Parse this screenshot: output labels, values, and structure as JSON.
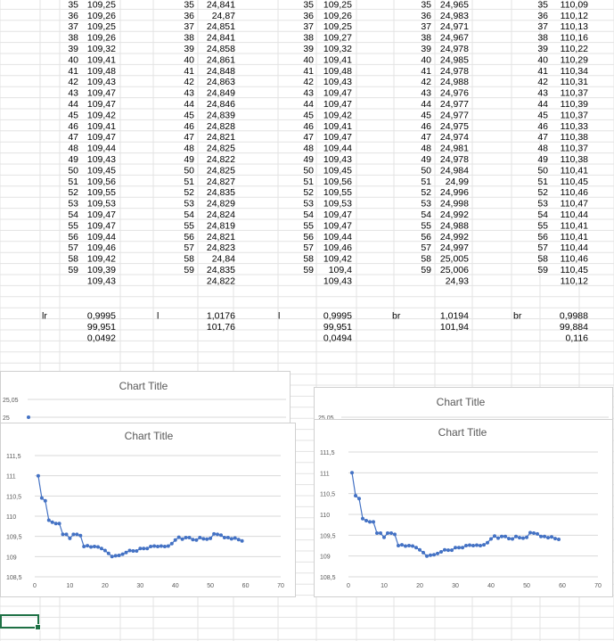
{
  "sheet": {
    "blocks": [
      {
        "name": "block-1",
        "x": [
          35,
          36,
          37,
          38,
          39,
          40,
          41,
          42,
          43,
          44,
          45,
          46,
          47,
          48,
          49,
          50,
          51,
          52,
          53,
          54,
          55,
          56,
          57,
          58,
          59
        ],
        "v": [
          "109,25",
          "109,26",
          "109,25",
          "109,26",
          "109,32",
          "109,41",
          "109,48",
          "109,43",
          "109,47",
          "109,47",
          "109,42",
          "109,41",
          "109,47",
          "109,44",
          "109,43",
          "109,45",
          "109,56",
          "109,55",
          "109,53",
          "109,47",
          "109,47",
          "109,44",
          "109,46",
          "109,42",
          "109,39"
        ],
        "avg": "109,43",
        "label": "lr",
        "stats": [
          "0,9995",
          "99,951",
          "0,0492"
        ]
      },
      {
        "name": "block-2",
        "x": [
          35,
          36,
          37,
          38,
          39,
          40,
          41,
          42,
          43,
          44,
          45,
          46,
          47,
          48,
          49,
          50,
          51,
          52,
          53,
          54,
          55,
          56,
          57,
          58,
          59
        ],
        "v": [
          "24,841",
          "24,87",
          "24,851",
          "24,841",
          "24,858",
          "24,861",
          "24,848",
          "24,863",
          "24,849",
          "24,846",
          "24,839",
          "24,828",
          "24,821",
          "24,825",
          "24,822",
          "24,825",
          "24,827",
          "24,835",
          "24,829",
          "24,824",
          "24,819",
          "24,821",
          "24,823",
          "24,84",
          "24,835"
        ],
        "avg": "24,822",
        "label": "l",
        "stats": [
          "1,0176",
          "101,76",
          ""
        ]
      },
      {
        "name": "block-3",
        "x": [
          35,
          36,
          37,
          38,
          39,
          40,
          41,
          42,
          43,
          44,
          45,
          46,
          47,
          48,
          49,
          50,
          51,
          52,
          53,
          54,
          55,
          56,
          57,
          58,
          59
        ],
        "v": [
          "109,25",
          "109,26",
          "109,25",
          "109,27",
          "109,32",
          "109,41",
          "109,48",
          "109,43",
          "109,47",
          "109,47",
          "109,42",
          "109,41",
          "109,47",
          "109,44",
          "109,43",
          "109,45",
          "109,56",
          "109,55",
          "109,53",
          "109,47",
          "109,47",
          "109,44",
          "109,46",
          "109,42",
          "109,4"
        ],
        "avg": "109,43",
        "label": "l",
        "stats": [
          "0,9995",
          "99,951",
          "0,0494"
        ]
      },
      {
        "name": "block-4",
        "x": [
          35,
          36,
          37,
          38,
          39,
          40,
          41,
          42,
          43,
          44,
          45,
          46,
          47,
          48,
          49,
          50,
          51,
          52,
          53,
          54,
          55,
          56,
          57,
          58,
          59
        ],
        "v": [
          "24,965",
          "24,983",
          "24,971",
          "24,967",
          "24,978",
          "24,985",
          "24,978",
          "24,988",
          "24,976",
          "24,977",
          "24,977",
          "24,975",
          "24,974",
          "24,981",
          "24,978",
          "24,984",
          "24,99",
          "24,996",
          "24,998",
          "24,992",
          "24,988",
          "24,992",
          "24,997",
          "25,005",
          "25,006"
        ],
        "avg": "24,93",
        "label": "br",
        "stats": [
          "1,0194",
          "101,94",
          ""
        ]
      },
      {
        "name": "block-5",
        "x": [
          35,
          36,
          37,
          38,
          39,
          40,
          41,
          42,
          43,
          44,
          45,
          46,
          47,
          48,
          49,
          50,
          51,
          52,
          53,
          54,
          55,
          56,
          57,
          58,
          59
        ],
        "v": [
          "110,09",
          "110,12",
          "110,13",
          "110,16",
          "110,22",
          "110,29",
          "110,34",
          "110,31",
          "110,37",
          "110,39",
          "110,37",
          "110,33",
          "110,38",
          "110,37",
          "110,38",
          "110,41",
          "110,45",
          "110,46",
          "110,47",
          "110,44",
          "110,41",
          "110,41",
          "110,44",
          "110,46",
          "110,45"
        ],
        "avg": "110,12",
        "label": "br",
        "stats": [
          "0,9988",
          "99,884",
          "0,116"
        ]
      }
    ]
  },
  "chart_data": [
    {
      "type": "line",
      "title": "Chart Title",
      "yticks": [
        "25,05",
        "25"
      ],
      "ylim": [
        24.95,
        25.05
      ]
    },
    {
      "type": "line",
      "title": "Chart Title",
      "yticks": [
        "25,05"
      ],
      "ylim": [
        24.95,
        25.05
      ]
    },
    {
      "type": "line",
      "title": "Chart Title",
      "xlim": [
        0,
        70
      ],
      "ylim": [
        108.5,
        111.5
      ],
      "xticks": [
        "0",
        "10",
        "20",
        "30",
        "40",
        "50",
        "60",
        "70"
      ],
      "yticks": [
        "108,5",
        "109",
        "109,5",
        "110",
        "110,5",
        "111",
        "111,5"
      ],
      "x": [
        1,
        2,
        3,
        4,
        5,
        6,
        7,
        8,
        9,
        10,
        11,
        12,
        13,
        14,
        15,
        16,
        17,
        18,
        19,
        20,
        21,
        22,
        23,
        24,
        25,
        26,
        27,
        28,
        29,
        30,
        31,
        32,
        33,
        34,
        35,
        36,
        37,
        38,
        39,
        40,
        41,
        42,
        43,
        44,
        45,
        46,
        47,
        48,
        49,
        50,
        51,
        52,
        53,
        54,
        55,
        56,
        57,
        58,
        59
      ],
      "values": [
        111.0,
        110.45,
        110.38,
        109.9,
        109.85,
        109.82,
        109.82,
        109.55,
        109.55,
        109.45,
        109.55,
        109.55,
        109.52,
        109.25,
        109.27,
        109.24,
        109.25,
        109.24,
        109.2,
        109.15,
        109.08,
        109.0,
        109.02,
        109.03,
        109.06,
        109.1,
        109.15,
        109.14,
        109.14,
        109.2,
        109.2,
        109.2,
        109.25,
        109.26,
        109.25,
        109.26,
        109.25,
        109.26,
        109.32,
        109.41,
        109.48,
        109.43,
        109.47,
        109.47,
        109.42,
        109.41,
        109.47,
        109.44,
        109.43,
        109.45,
        109.56,
        109.55,
        109.53,
        109.47,
        109.47,
        109.44,
        109.46,
        109.42,
        109.39
      ]
    },
    {
      "type": "line",
      "title": "Chart Title",
      "xlim": [
        0,
        70
      ],
      "ylim": [
        108.5,
        111.5
      ],
      "xticks": [
        "0",
        "10",
        "20",
        "30",
        "40",
        "50",
        "60",
        "70"
      ],
      "yticks": [
        "108,5",
        "109",
        "109,5",
        "110",
        "110,5",
        "111",
        "111,5"
      ],
      "x": [
        1,
        2,
        3,
        4,
        5,
        6,
        7,
        8,
        9,
        10,
        11,
        12,
        13,
        14,
        15,
        16,
        17,
        18,
        19,
        20,
        21,
        22,
        23,
        24,
        25,
        26,
        27,
        28,
        29,
        30,
        31,
        32,
        33,
        34,
        35,
        36,
        37,
        38,
        39,
        40,
        41,
        42,
        43,
        44,
        45,
        46,
        47,
        48,
        49,
        50,
        51,
        52,
        53,
        54,
        55,
        56,
        57,
        58,
        59
      ],
      "values": [
        111.0,
        110.45,
        110.38,
        109.9,
        109.85,
        109.82,
        109.82,
        109.55,
        109.55,
        109.45,
        109.55,
        109.55,
        109.52,
        109.25,
        109.27,
        109.24,
        109.25,
        109.24,
        109.2,
        109.15,
        109.08,
        109.0,
        109.02,
        109.03,
        109.06,
        109.1,
        109.15,
        109.14,
        109.14,
        109.2,
        109.2,
        109.2,
        109.25,
        109.26,
        109.25,
        109.26,
        109.25,
        109.27,
        109.32,
        109.41,
        109.48,
        109.43,
        109.47,
        109.47,
        109.42,
        109.41,
        109.47,
        109.44,
        109.43,
        109.45,
        109.56,
        109.55,
        109.53,
        109.47,
        109.47,
        109.44,
        109.46,
        109.42,
        109.4
      ]
    }
  ],
  "colors": {
    "series": "#4472c4",
    "grid": "#d9d9d9",
    "cellgrid": "#e3e3e3",
    "text": "#000000",
    "axis": "#595959",
    "select": "#1f7145"
  }
}
